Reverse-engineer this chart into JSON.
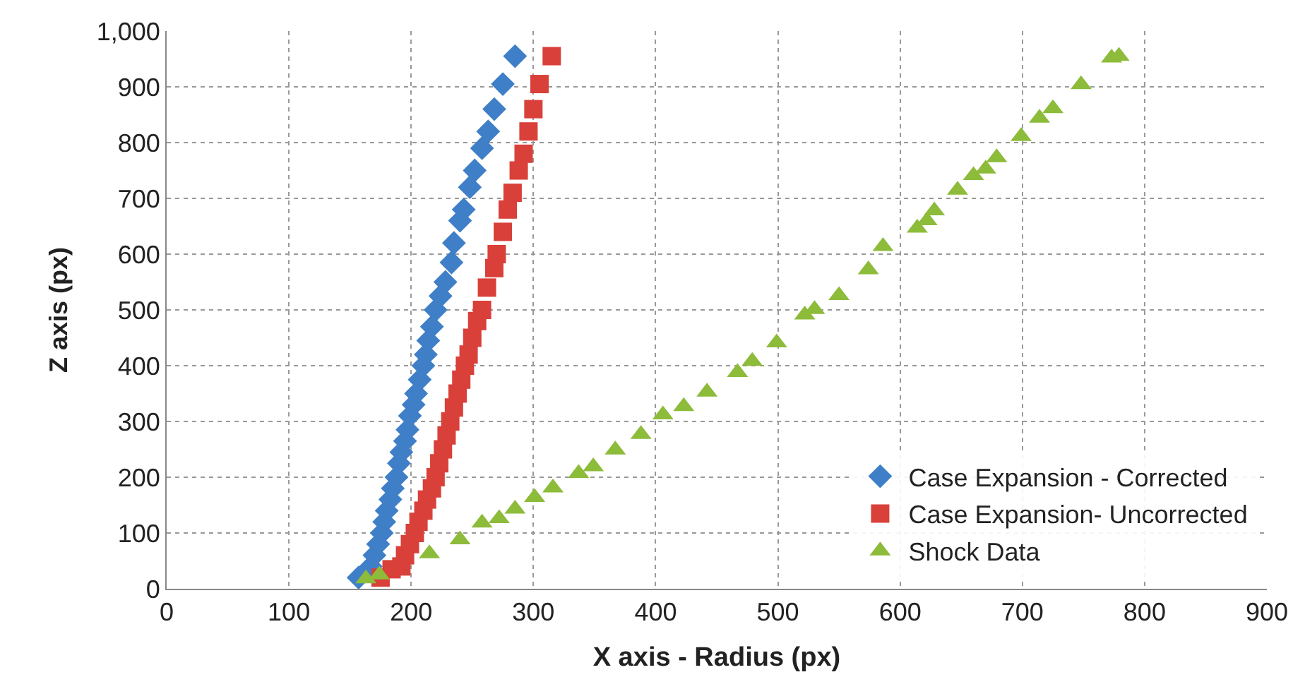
{
  "chart_data": {
    "type": "scatter",
    "xlabel": "X axis - Radius (px)",
    "ylabel": "Z axis (px)",
    "xlim": [
      0,
      900
    ],
    "ylim": [
      0,
      1000
    ],
    "xticks": [
      0,
      100,
      200,
      300,
      400,
      500,
      600,
      700,
      800,
      900
    ],
    "yticks": [
      0,
      100,
      200,
      300,
      400,
      500,
      600,
      700,
      800,
      900,
      {
        "value": 1000,
        "label": "1,000"
      }
    ],
    "grid": true,
    "legend": "bottom right",
    "series": [
      {
        "name": "Case Expansion - Corrected",
        "color": "#3f7fc8",
        "marker": "diamond",
        "x": [
          157,
          167,
          170,
          173,
          176,
          178,
          180,
          183,
          185,
          188,
          190,
          192,
          195,
          197,
          199,
          202,
          204,
          207,
          210,
          212,
          214,
          217,
          220,
          224,
          228,
          233,
          235,
          240,
          243,
          248,
          252,
          258,
          263,
          268,
          275,
          285
        ],
        "values": [
          20,
          40,
          60,
          80,
          100,
          120,
          140,
          160,
          180,
          200,
          225,
          245,
          265,
          285,
          310,
          330,
          350,
          375,
          400,
          420,
          445,
          470,
          500,
          525,
          550,
          585,
          620,
          660,
          680,
          720,
          750,
          790,
          820,
          860,
          905,
          955
        ]
      },
      {
        "name": "Case Expansion- Uncorrected",
        "color": "#d9403a",
        "marker": "square",
        "x": [
          175,
          184,
          192,
          195,
          199,
          203,
          206,
          210,
          213,
          217,
          220,
          223,
          226,
          229,
          232,
          235,
          238,
          241,
          244,
          247,
          250,
          254,
          258,
          262,
          268,
          270,
          275,
          279,
          283,
          288,
          292,
          296,
          300,
          305,
          315
        ],
        "values": [
          20,
          35,
          40,
          60,
          80,
          100,
          120,
          140,
          160,
          180,
          200,
          225,
          250,
          275,
          300,
          325,
          350,
          375,
          400,
          420,
          450,
          480,
          500,
          540,
          575,
          600,
          640,
          680,
          710,
          750,
          780,
          820,
          860,
          905,
          955
        ]
      },
      {
        "name": "Shock Data",
        "color": "#8dbb3a",
        "marker": "triangle",
        "x": [
          163,
          174,
          215,
          240,
          258,
          272,
          285,
          301,
          316,
          337,
          349,
          367,
          388,
          406,
          423,
          442,
          467,
          479,
          499,
          522,
          530,
          550,
          574,
          586,
          614,
          622,
          628,
          647,
          660,
          670,
          679,
          699,
          714,
          725,
          748,
          773,
          779
        ],
        "values": [
          18,
          25,
          63,
          88,
          118,
          126,
          143,
          164,
          181,
          207,
          219,
          249,
          277,
          312,
          327,
          353,
          388,
          408,
          441,
          491,
          501,
          526,
          572,
          614,
          647,
          660,
          678,
          715,
          741,
          753,
          773,
          811,
          844,
          861,
          904,
          952,
          955
        ]
      }
    ]
  }
}
